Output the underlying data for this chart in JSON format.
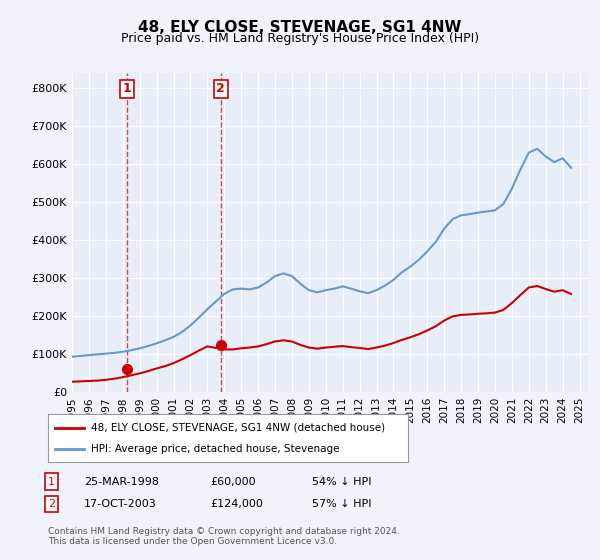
{
  "title": "48, ELY CLOSE, STEVENAGE, SG1 4NW",
  "subtitle": "Price paid vs. HM Land Registry's House Price Index (HPI)",
  "hpi_label": "HPI: Average price, detached house, Stevenage",
  "property_label": "48, ELY CLOSE, STEVENAGE, SG1 4NW (detached house)",
  "footnote": "Contains HM Land Registry data © Crown copyright and database right 2024.\nThis data is licensed under the Open Government Licence v3.0.",
  "sale1": {
    "date": "25-MAR-1998",
    "price": 60000,
    "pct": "54% ↓ HPI",
    "x": 1998.23
  },
  "sale2": {
    "date": "17-OCT-2003",
    "price": 124000,
    "pct": "57% ↓ HPI",
    "x": 2003.79
  },
  "ylim": [
    0,
    840000
  ],
  "yticks": [
    0,
    100000,
    200000,
    300000,
    400000,
    500000,
    600000,
    700000,
    800000
  ],
  "background_color": "#f0f4fa",
  "plot_bg": "#e8eef8",
  "red_color": "#cc0000",
  "blue_color": "#6699cc",
  "grid_color": "#ffffff",
  "hpi_x": [
    1995,
    1995.5,
    1996,
    1996.5,
    1997,
    1997.5,
    1998,
    1998.5,
    1999,
    1999.5,
    2000,
    2000.5,
    2001,
    2001.5,
    2002,
    2002.5,
    2003,
    2003.5,
    2004,
    2004.5,
    2005,
    2005.5,
    2006,
    2006.5,
    2007,
    2007.5,
    2008,
    2008.5,
    2009,
    2009.5,
    2010,
    2010.5,
    2011,
    2011.5,
    2012,
    2012.5,
    2013,
    2013.5,
    2014,
    2014.5,
    2015,
    2015.5,
    2016,
    2016.5,
    2017,
    2017.5,
    2018,
    2018.5,
    2019,
    2019.5,
    2020,
    2020.5,
    2021,
    2021.5,
    2022,
    2022.5,
    2023,
    2023.5,
    2024,
    2024.5
  ],
  "hpi_y": [
    93000,
    95000,
    97000,
    99000,
    101000,
    103000,
    106000,
    110000,
    115000,
    121000,
    128000,
    136000,
    145000,
    158000,
    175000,
    196000,
    218000,
    238000,
    258000,
    270000,
    272000,
    270000,
    275000,
    288000,
    305000,
    312000,
    305000,
    285000,
    268000,
    262000,
    268000,
    272000,
    278000,
    272000,
    265000,
    260000,
    268000,
    280000,
    295000,
    315000,
    330000,
    348000,
    370000,
    395000,
    430000,
    455000,
    465000,
    468000,
    472000,
    475000,
    478000,
    495000,
    535000,
    585000,
    630000,
    640000,
    620000,
    605000,
    615000,
    590000
  ],
  "property_x": [
    1995,
    1995.5,
    1996,
    1996.5,
    1997,
    1997.5,
    1998,
    1998.5,
    1999,
    1999.5,
    2000,
    2000.5,
    2001,
    2001.5,
    2002,
    2002.5,
    2003,
    2003.5,
    2004,
    2004.5,
    2005,
    2005.5,
    2006,
    2006.5,
    2007,
    2007.5,
    2008,
    2008.5,
    2009,
    2009.5,
    2010,
    2010.5,
    2011,
    2011.5,
    2012,
    2012.5,
    2013,
    2013.5,
    2014,
    2014.5,
    2015,
    2015.5,
    2016,
    2016.5,
    2017,
    2017.5,
    2018,
    2018.5,
    2019,
    2019.5,
    2020,
    2020.5,
    2021,
    2021.5,
    2022,
    2022.5,
    2023,
    2023.5,
    2024,
    2024.5
  ],
  "property_y": [
    27000,
    28000,
    29000,
    30000,
    32000,
    35000,
    39000,
    44000,
    49000,
    55000,
    62000,
    68000,
    76000,
    86000,
    97000,
    109000,
    120000,
    116000,
    112000,
    112000,
    115000,
    117000,
    120000,
    126000,
    133000,
    136000,
    133000,
    124000,
    117000,
    114000,
    117000,
    119000,
    121000,
    118000,
    116000,
    113000,
    117000,
    122000,
    129000,
    137000,
    144000,
    152000,
    162000,
    173000,
    188000,
    199000,
    203000,
    204000,
    206000,
    207000,
    209000,
    216000,
    234000,
    255000,
    275000,
    279000,
    271000,
    264000,
    268000,
    258000
  ]
}
